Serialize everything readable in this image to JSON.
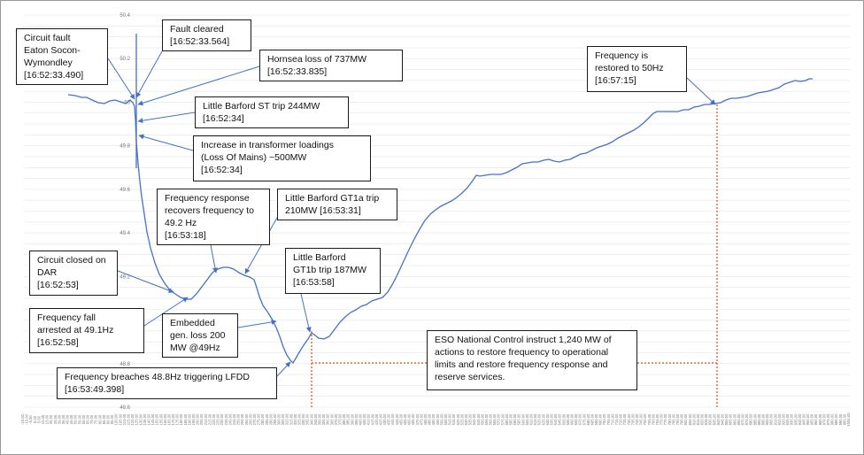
{
  "chart_data": {
    "type": "line",
    "title": "",
    "xlabel": "",
    "ylabel": "",
    "grid": true,
    "ylim": [
      48.6,
      50.4
    ],
    "yticks": [
      "50.4",
      "50.2",
      "50",
      "49.8",
      "49.6",
      "49.4",
      "49.2",
      "49",
      "48.8",
      "48.6"
    ],
    "xtick_labels": [
      "-15.00",
      "-10.00",
      "-5.00",
      "0.00",
      "5.00",
      "10.00",
      "15.00",
      "20.00",
      "25.00",
      "30.00",
      "35.00",
      "40.00",
      "45.00",
      "50.00",
      "55.00",
      "60.00",
      "65.00",
      "70.00",
      "75.00",
      "80.00",
      "85.00",
      "90.00",
      "95.00",
      "100.00",
      "105.00",
      "110.00",
      "115.00",
      "120.00",
      "125.00",
      "130.00",
      "135.00",
      "140.00",
      "145.00",
      "150.00",
      "155.00",
      "160.00",
      "165.00",
      "170.00",
      "175.00",
      "180.00",
      "185.00",
      "190.00",
      "195.00",
      "200.00",
      "205.00",
      "210.00",
      "215.00",
      "220.00",
      "225.00",
      "230.00",
      "235.00",
      "240.00",
      "245.00",
      "250.00",
      "255.00",
      "260.00",
      "265.00",
      "270.00",
      "275.00",
      "280.00",
      "285.00",
      "290.00",
      "295.00",
      "300.00",
      "305.00",
      "310.00",
      "315.00",
      "320.00",
      "325.00",
      "330.00",
      "335.00",
      "340.00",
      "345.00",
      "350.00",
      "355.00",
      "360.00",
      "365.00",
      "370.00",
      "375.00",
      "380.00",
      "385.00",
      "390.00",
      "395.00",
      "400.00",
      "405.00",
      "410.00",
      "415.00",
      "420.00",
      "425.00",
      "430.00",
      "435.00",
      "440.00",
      "445.00",
      "450.00",
      "455.00",
      "460.00",
      "465.00",
      "470.00",
      "475.00",
      "480.00",
      "485.00",
      "490.00",
      "495.00",
      "500.00",
      "505.00",
      "510.00",
      "515.00",
      "520.00",
      "525.00",
      "530.00",
      "535.00",
      "540.00",
      "545.00",
      "550.00",
      "555.00",
      "560.00",
      "565.00",
      "570.00",
      "575.00",
      "580.00",
      "585.00",
      "590.00",
      "595.00",
      "600.00",
      "605.00",
      "610.00",
      "615.00",
      "620.00",
      "625.00",
      "630.00",
      "635.00",
      "640.00",
      "645.00",
      "650.00",
      "655.00",
      "660.00",
      "665.00",
      "670.00",
      "675.00",
      "680.00",
      "685.00",
      "690.00",
      "695.00",
      "700.00",
      "705.00",
      "710.00",
      "715.00",
      "720.00",
      "725.00",
      "730.00",
      "735.00",
      "740.00",
      "745.00",
      "750.00",
      "755.00",
      "760.00",
      "765.00",
      "770.00",
      "775.00",
      "780.00",
      "785.00",
      "790.00",
      "795.00",
      "800.00",
      "805.00",
      "810.00",
      "815.00",
      "820.00",
      "825.00",
      "830.00",
      "835.00",
      "840.00",
      "845.00",
      "850.00",
      "855.00",
      "860.00",
      "865.00",
      "870.00",
      "875.00",
      "880.00",
      "885.00",
      "890.00",
      "895.00",
      "900.00",
      "905.00",
      "910.00",
      "915.00",
      "920.00",
      "925.00",
      "930.00",
      "935.00",
      "940.00",
      "945.00",
      "950.00",
      "955.00",
      "960.00",
      "965.00",
      "970.00",
      "975.00",
      "980.00",
      "985.00",
      "990.00",
      "995.00",
      "1000.00"
    ],
    "series": [
      {
        "name": "",
        "color": "#4472c4",
        "x": [
          -10,
          -5,
          -2,
          0,
          2,
          5,
          8,
          10,
          12,
          15,
          18,
          20,
          22,
          25,
          28,
          30,
          32,
          35,
          38,
          40,
          42,
          45,
          48,
          50,
          52,
          55,
          58,
          60,
          62,
          65,
          68,
          70,
          72,
          75,
          78,
          80,
          82,
          85,
          88,
          90,
          92,
          95,
          98,
          100,
          102,
          105,
          108,
          110,
          112,
          115,
          118,
          120,
          122,
          125,
          128,
          130,
          132,
          135,
          138,
          140,
          142,
          145,
          148,
          150,
          152,
          155,
          158,
          160,
          162,
          165,
          168,
          170,
          172,
          175,
          178,
          180,
          182,
          185,
          188,
          190,
          192,
          195,
          198,
          200,
          202,
          205,
          208,
          210,
          212,
          215,
          218,
          220,
          222,
          225,
          228,
          230,
          232,
          235,
          238,
          240,
          242,
          245,
          248,
          250,
          252,
          255,
          258,
          260,
          262,
          265,
          268,
          270,
          272,
          275,
          278,
          280,
          282,
          285,
          288,
          290,
          292,
          295,
          298,
          300,
          302,
          305,
          308,
          310,
          312,
          315,
          318,
          320,
          322,
          325,
          328,
          330
        ],
        "y": [
          50.02,
          50.01,
          50.0,
          50.0,
          49.98,
          49.78,
          49.6,
          49.48,
          49.38,
          49.28,
          49.2,
          49.15,
          49.12,
          49.1,
          49.1,
          49.12,
          49.16,
          49.2,
          49.22,
          49.24,
          49.24,
          49.23,
          49.22,
          49.2,
          49.15,
          49.05,
          48.95,
          48.85,
          48.82,
          48.85,
          48.9,
          48.94,
          48.96,
          48.95,
          48.94,
          48.96,
          49.0,
          49.05,
          49.07,
          49.08,
          49.1,
          49.12,
          49.15,
          49.17,
          49.2,
          49.3,
          49.38,
          49.45,
          49.48,
          49.51,
          49.54,
          49.58,
          49.62,
          49.65,
          49.66,
          49.67,
          49.68,
          49.69,
          49.7,
          49.71,
          49.72,
          49.73,
          49.73,
          49.74,
          49.75,
          49.76,
          49.77,
          49.78,
          49.8,
          49.83,
          49.86,
          49.89,
          49.91,
          49.93,
          49.95,
          49.96,
          49.96,
          49.96,
          49.96,
          49.96,
          49.97,
          49.98,
          49.99,
          50.0,
          50.0,
          50.01,
          50.02,
          50.02,
          50.03,
          50.04,
          50.05,
          50.06,
          50.07,
          50.08,
          50.09,
          50.1,
          50.1,
          50.11,
          50.11,
          50.11,
          50.11,
          50.11,
          50.11,
          50.11,
          50.11,
          50.11,
          50.11,
          50.11,
          50.11,
          50.11,
          50.11,
          50.11,
          50.11,
          50.11,
          50.11,
          50.11,
          50.11,
          50.11,
          50.11,
          50.11,
          50.11,
          50.11,
          50.11,
          50.11,
          50.11,
          50.11,
          50.11,
          50.11,
          50.11,
          50.11,
          50.11,
          50.11,
          50.11,
          50.11,
          50.11,
          50.11
        ]
      }
    ]
  },
  "annotations": [
    {
      "id": "circuit-fault",
      "lines": [
        "Circuit fault",
        "Eaton Socon-",
        "Wymondley",
        "[16:52:33.490]"
      ]
    },
    {
      "id": "fault-cleared",
      "lines": [
        "Fault cleared",
        "[16:52:33.564]"
      ]
    },
    {
      "id": "hornsea",
      "lines": [
        "Hornsea loss of 737MW",
        "[16:52:33.835]"
      ]
    },
    {
      "id": "little-barford-st",
      "lines": [
        "Little Barford ST trip 244MW",
        "[16:52:34]"
      ]
    },
    {
      "id": "transformer",
      "lines": [
        "Increase in transformer loadings",
        "(Loss Of Mains) ~500MW",
        "[16:52:34]"
      ]
    },
    {
      "id": "freq-response",
      "lines": [
        "Frequency response",
        "recovers frequency to",
        "49.2 Hz",
        "[16:53:18]"
      ]
    },
    {
      "id": "gt1a",
      "lines": [
        "Little Barford GT1a trip",
        "210MW [16:53:31]"
      ]
    },
    {
      "id": "gt1b",
      "lines": [
        "Little Barford",
        "GT1b trip 187MW",
        "[16:53:58]"
      ]
    },
    {
      "id": "dar",
      "lines": [
        "Circuit closed on",
        "DAR",
        "[16:52:53]"
      ]
    },
    {
      "id": "fall-arrested",
      "lines": [
        "Frequency fall",
        "arrested at 49.1Hz",
        "[16:52:58]"
      ]
    },
    {
      "id": "embedded",
      "lines": [
        "Embedded",
        "gen. loss 200",
        "MW @49Hz"
      ]
    },
    {
      "id": "lfdd",
      "lines": [
        "Frequency breaches 48.8Hz triggering LFDD",
        "[16:53:49.398]"
      ]
    },
    {
      "id": "eso",
      "lines": [
        "ESO National Control instruct 1,240 MW of",
        "actions to restore frequency to operational",
        "limits and restore frequency response and",
        "reserve services."
      ]
    },
    {
      "id": "restored",
      "lines": [
        "Frequency is",
        "restored to 50Hz",
        "[16:57:15]"
      ]
    }
  ]
}
